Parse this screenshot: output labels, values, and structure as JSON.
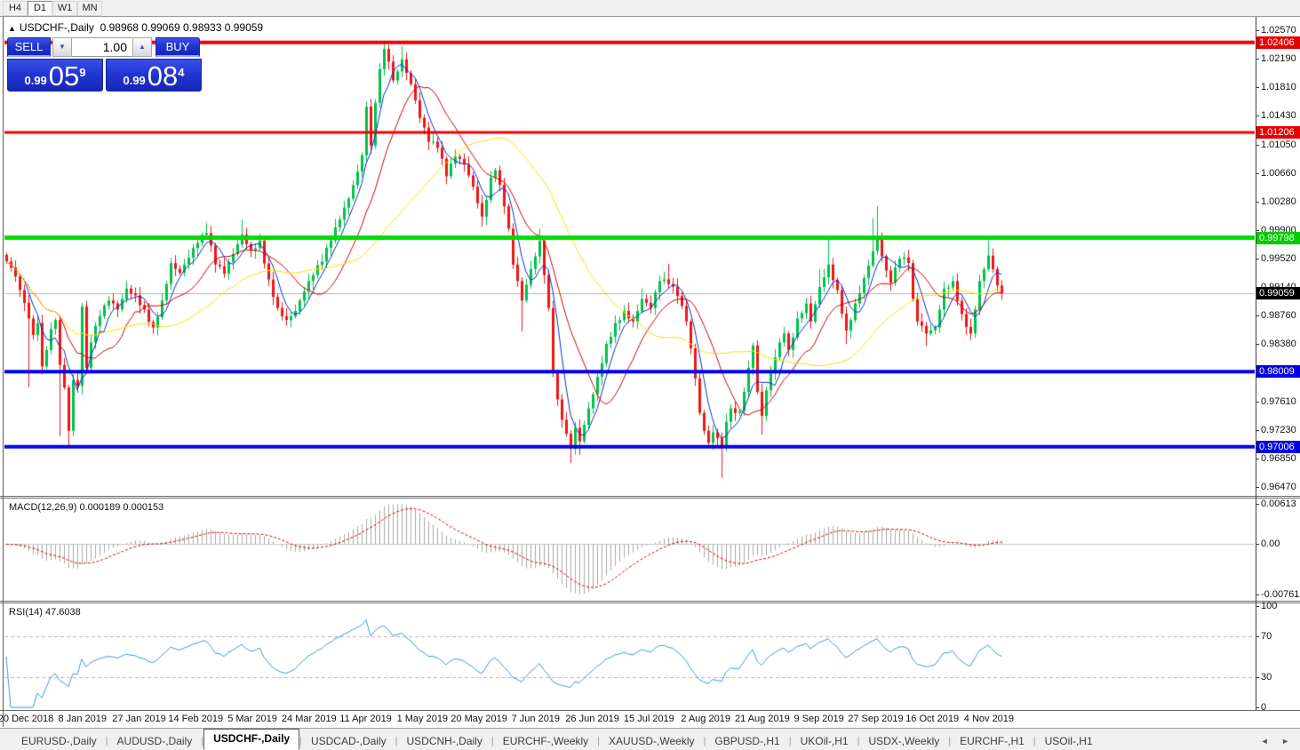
{
  "toolbar": {
    "buttons": [
      "H4",
      "D1",
      "W1",
      "MN"
    ],
    "active": "D1"
  },
  "chart_header": {
    "symbol": "USDCHF-,Daily",
    "ohlc": "0.98968 0.99069 0.98933 0.99059",
    "arrow_icon": "▲"
  },
  "trade_panel": {
    "sell_label": "SELL",
    "buy_label": "BUY",
    "volume": "1.00",
    "down_icon": "▼",
    "up_icon": "▲",
    "sell_price": {
      "small": "0.99",
      "big": "05",
      "sup": "9"
    },
    "buy_price": {
      "small": "0.99",
      "big": "08",
      "sup": "4"
    }
  },
  "tabs": [
    {
      "label": "EURUSD-,Daily",
      "active": false
    },
    {
      "label": "AUDUSD-,Daily",
      "active": false
    },
    {
      "label": "USDCHF-,Daily",
      "active": true
    },
    {
      "label": "USDCAD-,Daily",
      "active": false
    },
    {
      "label": "USDCNH-,Daily",
      "active": false
    },
    {
      "label": "EURCHF-,Weekly",
      "active": false
    },
    {
      "label": "XAUUSD-,Weekly",
      "active": false
    },
    {
      "label": "GBPUSD-,H1",
      "active": false
    },
    {
      "label": "UKOil-,H1",
      "active": false
    },
    {
      "label": "USDX-,Weekly",
      "active": false
    },
    {
      "label": "EURCHF-,H1",
      "active": false
    },
    {
      "label": "USOil-,H1",
      "active": false
    }
  ],
  "tab_scroll_icons": "◄ ►",
  "chart_data": {
    "type": "candlestick",
    "symbol": "USDCHF-",
    "timeframe": "Daily",
    "price_axis": {
      "ticks": [
        "1.02570",
        "1.02190",
        "1.01810",
        "1.01430",
        "1.01050",
        "1.00660",
        "1.00280",
        "0.99900",
        "0.99520",
        "0.99140",
        "0.98760",
        "0.98380",
        "0.98000",
        "0.97610",
        "0.97230",
        "0.96850",
        "0.96470"
      ],
      "top_price": 1.0257,
      "bottom_price": 0.9647
    },
    "price_badges": [
      {
        "text": "1.02406",
        "price": 1.02406,
        "bg": "#e80000",
        "fg": "#ffffff"
      },
      {
        "text": "1.01206",
        "price": 1.01206,
        "bg": "#e80000",
        "fg": "#ffffff"
      },
      {
        "text": "0.99798",
        "price": 0.99798,
        "bg": "#00cc00",
        "fg": "#ffffff"
      },
      {
        "text": "0.99059",
        "price": 0.99059,
        "bg": "#000000",
        "fg": "#ffffff"
      },
      {
        "text": "0.98009",
        "price": 0.98009,
        "bg": "#0000e0",
        "fg": "#ffffff"
      },
      {
        "text": "0.97006",
        "price": 0.97006,
        "bg": "#0000e0",
        "fg": "#ffffff"
      }
    ],
    "hlines": [
      {
        "price": 1.02406,
        "color": "#f00000",
        "width": 4
      },
      {
        "price": 1.01206,
        "color": "#f00000",
        "width": 3
      },
      {
        "price": 0.99798,
        "color": "#00dc00",
        "width": 5
      },
      {
        "price": 0.98009,
        "color": "#0000e8",
        "width": 4
      },
      {
        "price": 0.97006,
        "color": "#0000e8",
        "width": 4
      }
    ],
    "current_price": {
      "value": 0.99059,
      "line_color": "#b4b4b4"
    },
    "dates": [
      "20 Dec 2018",
      "8 Jan 2019",
      "27 Jan 2019",
      "14 Feb 2019",
      "5 Mar 2019",
      "24 Mar 2019",
      "11 Apr 2019",
      "1 May 2019",
      "20 May 2019",
      "7 Jun 2019",
      "26 Jun 2019",
      "15 Jul 2019",
      "2 Aug 2019",
      "21 Aug 2019",
      "9 Sep 2019",
      "27 Sep 2019",
      "16 Oct 2019",
      "4 Nov 2019"
    ],
    "candle_count": 225,
    "colors": {
      "up": "#00c04a",
      "down": "#f01414",
      "ma_fast": "#0030d8",
      "ma_mid": "#d40000",
      "ma_slow": "#ffdf00",
      "macd_hist": "#a8a8a8",
      "macd_signal": "#e00000",
      "rsi_line": "#3e95e8",
      "rsi_levels": "#b8b8b8"
    },
    "moving_averages": [
      {
        "period": 5
      },
      {
        "period": 13
      },
      {
        "period": 34
      }
    ],
    "close_anchors": [
      [
        0,
        0.9948
      ],
      [
        1,
        0.994
      ],
      [
        2,
        0.9928
      ],
      [
        3,
        0.991
      ],
      [
        4,
        0.9893
      ],
      [
        5,
        0.9872
      ],
      [
        6,
        0.985
      ],
      [
        7,
        0.9866
      ],
      [
        8,
        0.9808
      ],
      [
        9,
        0.983
      ],
      [
        10,
        0.9858
      ],
      [
        11,
        0.987
      ],
      [
        12,
        0.981
      ],
      [
        13,
        0.978
      ],
      [
        14,
        0.9722
      ],
      [
        15,
        0.979
      ],
      [
        16,
        0.9782
      ],
      [
        17,
        0.9888
      ],
      [
        18,
        0.9806
      ],
      [
        19,
        0.984
      ],
      [
        20,
        0.9862
      ],
      [
        21,
        0.9875
      ],
      [
        23,
        0.9896
      ],
      [
        25,
        0.9884
      ],
      [
        27,
        0.9912
      ],
      [
        29,
        0.9903
      ],
      [
        31,
        0.9884
      ],
      [
        33,
        0.986
      ],
      [
        35,
        0.9896
      ],
      [
        37,
        0.9946
      ],
      [
        39,
        0.9933
      ],
      [
        41,
        0.9953
      ],
      [
        43,
        0.9973
      ],
      [
        45,
        0.9986
      ],
      [
        47,
        0.9944
      ],
      [
        49,
        0.9932
      ],
      [
        51,
        0.9958
      ],
      [
        53,
        0.9984
      ],
      [
        55,
        0.9963
      ],
      [
        57,
        0.9976
      ],
      [
        59,
        0.9924
      ],
      [
        61,
        0.9886
      ],
      [
        63,
        0.987
      ],
      [
        65,
        0.9882
      ],
      [
        67,
        0.9908
      ],
      [
        69,
        0.993
      ],
      [
        71,
        0.9948
      ],
      [
        73,
        0.9976
      ],
      [
        75,
        1.0004
      ],
      [
        77,
        1.0032
      ],
      [
        79,
        1.0068
      ],
      [
        80,
        1.009
      ],
      [
        81,
        1.0155
      ],
      [
        82,
        1.0103
      ],
      [
        83,
        1.016
      ],
      [
        84,
        1.0205
      ],
      [
        85,
        1.0232
      ],
      [
        86,
        1.0215
      ],
      [
        87,
        1.019
      ],
      [
        88,
        1.0202
      ],
      [
        89,
        1.0218
      ],
      [
        90,
        1.02
      ],
      [
        91,
        1.0185
      ],
      [
        93,
        1.014
      ],
      [
        95,
        1.0108
      ],
      [
        97,
        1.01
      ],
      [
        99,
        1.0062
      ],
      [
        101,
        1.0088
      ],
      [
        103,
        1.0078
      ],
      [
        105,
        1.0048
      ],
      [
        107,
        1.0008
      ],
      [
        109,
        1.006
      ],
      [
        110,
        1.007
      ],
      [
        112,
        1.0022
      ],
      [
        113,
        0.9992
      ],
      [
        114,
        0.9944
      ],
      [
        116,
        0.9896
      ],
      [
        118,
        0.9938
      ],
      [
        120,
        0.9976
      ],
      [
        121,
        0.993
      ],
      [
        122,
        0.9886
      ],
      [
        123,
        0.98
      ],
      [
        124,
        0.9764
      ],
      [
        126,
        0.9718
      ],
      [
        127,
        0.9698
      ],
      [
        128,
        0.9726
      ],
      [
        129,
        0.9708
      ],
      [
        131,
        0.9752
      ],
      [
        133,
        0.9794
      ],
      [
        135,
        0.9838
      ],
      [
        137,
        0.9866
      ],
      [
        139,
        0.9882
      ],
      [
        141,
        0.9868
      ],
      [
        143,
        0.9898
      ],
      [
        145,
        0.9886
      ],
      [
        147,
        0.9922
      ],
      [
        149,
        0.9918
      ],
      [
        151,
        0.9902
      ],
      [
        153,
        0.9868
      ],
      [
        155,
        0.9792
      ],
      [
        156,
        0.9746
      ],
      [
        157,
        0.9722
      ],
      [
        158,
        0.9706
      ],
      [
        159,
        0.972
      ],
      [
        160,
        0.9712
      ],
      [
        161,
        0.9701
      ],
      [
        162,
        0.9734
      ],
      [
        163,
        0.9752
      ],
      [
        165,
        0.9748
      ],
      [
        167,
        0.9806
      ],
      [
        168,
        0.9836
      ],
      [
        169,
        0.9774
      ],
      [
        170,
        0.9742
      ],
      [
        171,
        0.9776
      ],
      [
        173,
        0.982
      ],
      [
        175,
        0.9852
      ],
      [
        176,
        0.983
      ],
      [
        178,
        0.9872
      ],
      [
        180,
        0.9892
      ],
      [
        181,
        0.9868
      ],
      [
        183,
        0.9914
      ],
      [
        185,
        0.9944
      ],
      [
        187,
        0.991
      ],
      [
        189,
        0.9856
      ],
      [
        191,
        0.9892
      ],
      [
        193,
        0.9926
      ],
      [
        195,
        0.9962
      ],
      [
        196,
        0.9978
      ],
      [
        198,
        0.9936
      ],
      [
        199,
        0.992
      ],
      [
        201,
        0.9952
      ],
      [
        203,
        0.9946
      ],
      [
        204,
        0.9898
      ],
      [
        205,
        0.9868
      ],
      [
        207,
        0.9852
      ],
      [
        209,
        0.986
      ],
      [
        211,
        0.9912
      ],
      [
        213,
        0.9922
      ],
      [
        215,
        0.9878
      ],
      [
        217,
        0.9852
      ],
      [
        219,
        0.9922
      ],
      [
        221,
        0.9956
      ],
      [
        222,
        0.9938
      ],
      [
        223,
        0.9916
      ],
      [
        224,
        0.9906
      ]
    ],
    "wick_lows": [
      [
        5,
        0.978
      ],
      [
        12,
        0.9715
      ],
      [
        14,
        0.9701
      ],
      [
        107,
        0.9995
      ],
      [
        116,
        0.9855
      ],
      [
        127,
        0.9679
      ],
      [
        129,
        0.969
      ],
      [
        161,
        0.9659
      ],
      [
        170,
        0.9717
      ],
      [
        189,
        0.9838
      ],
      [
        207,
        0.9835
      ],
      [
        217,
        0.9843
      ]
    ],
    "wick_highs": [
      [
        45,
        1.0
      ],
      [
        53,
        1.0004
      ],
      [
        85,
        1.024
      ],
      [
        89,
        1.0236
      ],
      [
        120,
        0.9992
      ],
      [
        143,
        0.9912
      ],
      [
        149,
        0.9945
      ],
      [
        183,
        0.9938
      ],
      [
        185,
        0.998
      ],
      [
        195,
        1.0006
      ],
      [
        196,
        1.0022
      ],
      [
        221,
        0.9976
      ]
    ],
    "macd": {
      "label": "MACD(12,26,9) 0.000189 0.000153",
      "fast": 12,
      "slow": 26,
      "signal": 9,
      "axis": [
        {
          "text": "0.00613",
          "pos": "top"
        },
        {
          "text": "0.00",
          "pos": "zero"
        },
        {
          "text": "-0.007612",
          "pos": "bottom"
        }
      ],
      "range_max": 0.00613,
      "range_min": -0.007612,
      "last_value": 0.000189,
      "last_signal": 0.000153
    },
    "rsi": {
      "label": "RSI(14) 47.6038",
      "period": 14,
      "last_value": 47.6038,
      "axis": [
        {
          "text": "100",
          "value": 100
        },
        {
          "text": "70",
          "value": 70
        },
        {
          "text": "30",
          "value": 30
        },
        {
          "text": "0",
          "value": 0
        }
      ],
      "levels": [
        70,
        30
      ]
    }
  }
}
